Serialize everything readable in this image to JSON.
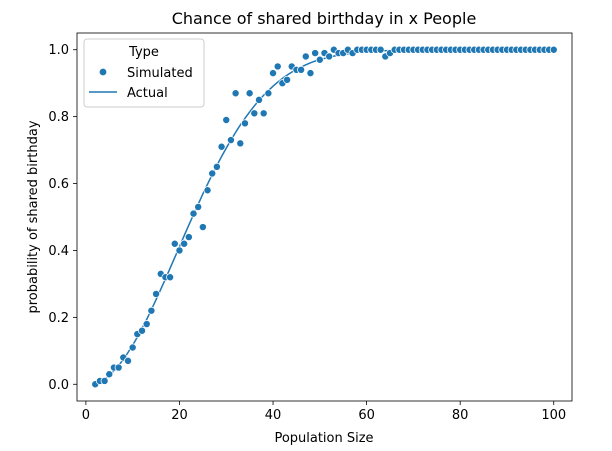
{
  "chart_data": {
    "type": "scatter",
    "title": "Chance of shared birthday in x People",
    "xlabel": "Population Size",
    "ylabel": "probability of shared birthday",
    "xlim": [
      -1.9,
      103.9
    ],
    "ylim": [
      -0.05,
      1.05
    ],
    "xticks": [
      0,
      20,
      40,
      60,
      80,
      100
    ],
    "xtick_labels": [
      "0",
      "20",
      "40",
      "60",
      "80",
      "100"
    ],
    "yticks": [
      0.0,
      0.2,
      0.4,
      0.6,
      0.8,
      1.0
    ],
    "ytick_labels": [
      "0.0",
      "0.2",
      "0.4",
      "0.6",
      "0.8",
      "1.0"
    ],
    "grid": false,
    "legend": {
      "title": "Type",
      "placement": "upper-left",
      "entries": [
        {
          "label": "Simulated",
          "marker": "circle"
        },
        {
          "label": "Actual",
          "marker": "line"
        }
      ]
    },
    "colors": {
      "series": "#1f77b4"
    },
    "series": [
      {
        "name": "Simulated",
        "kind": "scatter",
        "x": [
          2,
          3,
          4,
          5,
          6,
          7,
          8,
          9,
          10,
          11,
          12,
          13,
          14,
          15,
          16,
          17,
          18,
          19,
          20,
          21,
          22,
          23,
          24,
          25,
          26,
          27,
          28,
          29,
          30,
          31,
          32,
          33,
          34,
          35,
          36,
          37,
          38,
          39,
          40,
          41,
          42,
          43,
          44,
          45,
          46,
          47,
          48,
          49,
          50,
          51,
          52,
          53,
          54,
          55,
          56,
          57,
          58,
          59,
          60,
          61,
          62,
          63,
          64,
          65,
          66,
          67,
          68,
          69,
          70,
          71,
          72,
          73,
          74,
          75,
          76,
          77,
          78,
          79,
          80,
          81,
          82,
          83,
          84,
          85,
          86,
          87,
          88,
          89,
          90,
          91,
          92,
          93,
          94,
          95,
          96,
          97,
          98,
          99,
          100
        ],
        "y": [
          0.0,
          0.01,
          0.01,
          0.03,
          0.05,
          0.05,
          0.08,
          0.07,
          0.11,
          0.15,
          0.16,
          0.18,
          0.22,
          0.27,
          0.33,
          0.32,
          0.32,
          0.42,
          0.4,
          0.42,
          0.44,
          0.51,
          0.53,
          0.47,
          0.58,
          0.63,
          0.65,
          0.71,
          0.79,
          0.73,
          0.87,
          0.72,
          0.78,
          0.87,
          0.81,
          0.85,
          0.81,
          0.87,
          0.93,
          0.95,
          0.9,
          0.91,
          0.95,
          0.94,
          0.94,
          0.98,
          0.93,
          0.99,
          0.97,
          0.99,
          0.98,
          1.0,
          0.99,
          0.99,
          1.0,
          0.99,
          1.0,
          1.0,
          1.0,
          1.0,
          1.0,
          1.0,
          0.98,
          0.99,
          1.0,
          1.0,
          1.0,
          1.0,
          1.0,
          1.0,
          1.0,
          1.0,
          1.0,
          1.0,
          1.0,
          1.0,
          1.0,
          1.0,
          1.0,
          1.0,
          1.0,
          1.0,
          1.0,
          1.0,
          1.0,
          1.0,
          1.0,
          1.0,
          1.0,
          1.0,
          1.0,
          1.0,
          1.0,
          1.0,
          1.0,
          1.0,
          1.0,
          1.0,
          1.0
        ]
      },
      {
        "name": "Actual",
        "kind": "line",
        "x": [
          2,
          3,
          4,
          5,
          6,
          7,
          8,
          9,
          10,
          11,
          12,
          13,
          14,
          15,
          16,
          17,
          18,
          19,
          20,
          21,
          22,
          23,
          24,
          25,
          26,
          27,
          28,
          29,
          30,
          31,
          32,
          33,
          34,
          35,
          36,
          37,
          38,
          39,
          40,
          41,
          42,
          43,
          44,
          45,
          46,
          47,
          48,
          49,
          50,
          51,
          52,
          53,
          54,
          55,
          56,
          57,
          58,
          59,
          60,
          61,
          62,
          63,
          64,
          65,
          66,
          67,
          68,
          69,
          70,
          71,
          72,
          73,
          74,
          75,
          76,
          77,
          78,
          79,
          80,
          81,
          82,
          83,
          84,
          85,
          86,
          87,
          88,
          89,
          90,
          91,
          92,
          93,
          94,
          95,
          96,
          97,
          98,
          99,
          100
        ],
        "y": [
          0.003,
          0.008,
          0.016,
          0.027,
          0.04,
          0.056,
          0.074,
          0.095,
          0.117,
          0.141,
          0.167,
          0.194,
          0.223,
          0.253,
          0.284,
          0.315,
          0.347,
          0.379,
          0.411,
          0.444,
          0.476,
          0.507,
          0.538,
          0.569,
          0.598,
          0.627,
          0.654,
          0.681,
          0.706,
          0.73,
          0.753,
          0.775,
          0.795,
          0.814,
          0.832,
          0.849,
          0.864,
          0.878,
          0.891,
          0.903,
          0.914,
          0.924,
          0.933,
          0.941,
          0.948,
          0.955,
          0.961,
          0.966,
          0.97,
          0.974,
          0.978,
          0.981,
          0.984,
          0.986,
          0.988,
          0.99,
          0.992,
          0.993,
          0.994,
          0.995,
          0.996,
          0.997,
          0.997,
          0.998,
          0.998,
          0.998,
          0.999,
          0.999,
          0.999,
          0.999,
          1.0,
          1.0,
          1.0,
          1.0,
          1.0,
          1.0,
          1.0,
          1.0,
          1.0,
          1.0,
          1.0,
          1.0,
          1.0,
          1.0,
          1.0,
          1.0,
          1.0,
          1.0,
          1.0,
          1.0,
          1.0,
          1.0,
          1.0,
          1.0,
          1.0,
          1.0,
          1.0,
          1.0,
          1.0
        ]
      }
    ]
  }
}
